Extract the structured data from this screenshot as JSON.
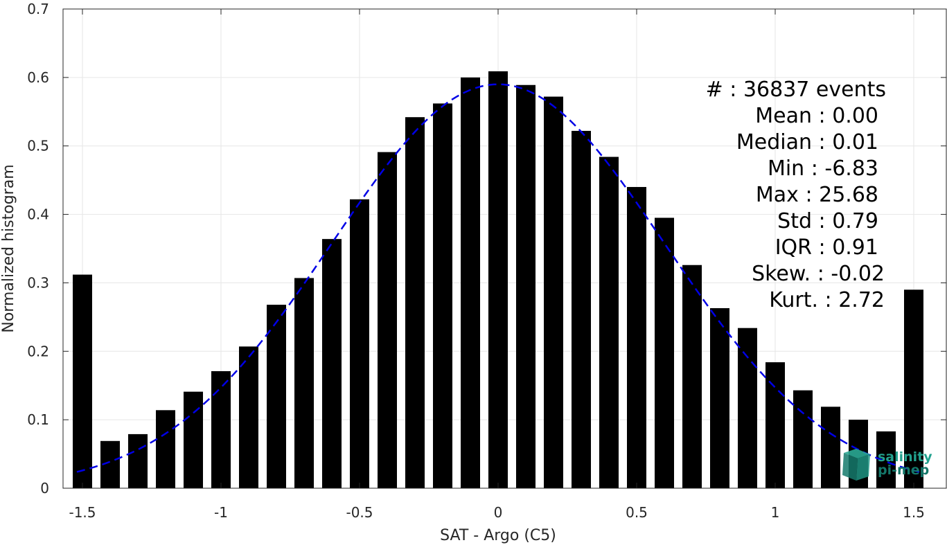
{
  "chart_data": {
    "type": "bar",
    "title": "",
    "xlabel": "SAT - Argo (C5)",
    "ylabel": "Normalized histogram",
    "xlim": [
      -1.57,
      1.62
    ],
    "ylim": [
      0,
      0.7
    ],
    "x_ticks": [
      -1.5,
      -1,
      -0.5,
      0,
      0.5,
      1,
      1.5
    ],
    "x_tick_labels": [
      "-1.5",
      "-1",
      "-0.5",
      "0",
      "0.5",
      "1",
      "1.5"
    ],
    "y_ticks": [
      0,
      0.1,
      0.2,
      0.3,
      0.4,
      0.5,
      0.6,
      0.7
    ],
    "y_tick_labels": [
      "0",
      "0.1",
      "0.2",
      "0.3",
      "0.4",
      "0.5",
      "0.6",
      "0.7"
    ],
    "grid": true,
    "bar_color": "#000000",
    "bar_width": 0.07,
    "bars": {
      "x": [
        -1.5,
        -1.4,
        -1.3,
        -1.2,
        -1.1,
        -1.0,
        -0.9,
        -0.8,
        -0.7,
        -0.6,
        -0.5,
        -0.4,
        -0.3,
        -0.2,
        -0.1,
        0.0,
        0.1,
        0.2,
        0.3,
        0.4,
        0.5,
        0.6,
        0.7,
        0.8,
        0.9,
        1.0,
        1.1,
        1.2,
        1.3,
        1.4,
        1.5
      ],
      "values": [
        0.312,
        0.069,
        0.079,
        0.114,
        0.141,
        0.171,
        0.207,
        0.268,
        0.307,
        0.364,
        0.422,
        0.491,
        0.542,
        0.562,
        0.6,
        0.609,
        0.589,
        0.572,
        0.522,
        0.484,
        0.44,
        0.395,
        0.326,
        0.263,
        0.234,
        0.184,
        0.143,
        0.119,
        0.1,
        0.083,
        0.29
      ]
    },
    "fit_curve": {
      "type": "gaussian",
      "style": "dashed",
      "color": "#0000e6",
      "x_range": [
        -1.52,
        1.52
      ],
      "amplitude": 0.59,
      "mean": 0.0,
      "std": 0.6
    }
  },
  "stats": {
    "lines": [
      "#  : 36837 events",
      "Mean : 0.00",
      "Median : 0.01",
      "Min : -6.83",
      "Max : 25.68",
      "Std : 0.79",
      "IQR : 0.91",
      "Skew. : -0.02",
      "Kurt. : 2.72"
    ]
  },
  "logo": {
    "line1": "salinity",
    "line2": "pi-mep",
    "color": "#1a8a7a"
  }
}
